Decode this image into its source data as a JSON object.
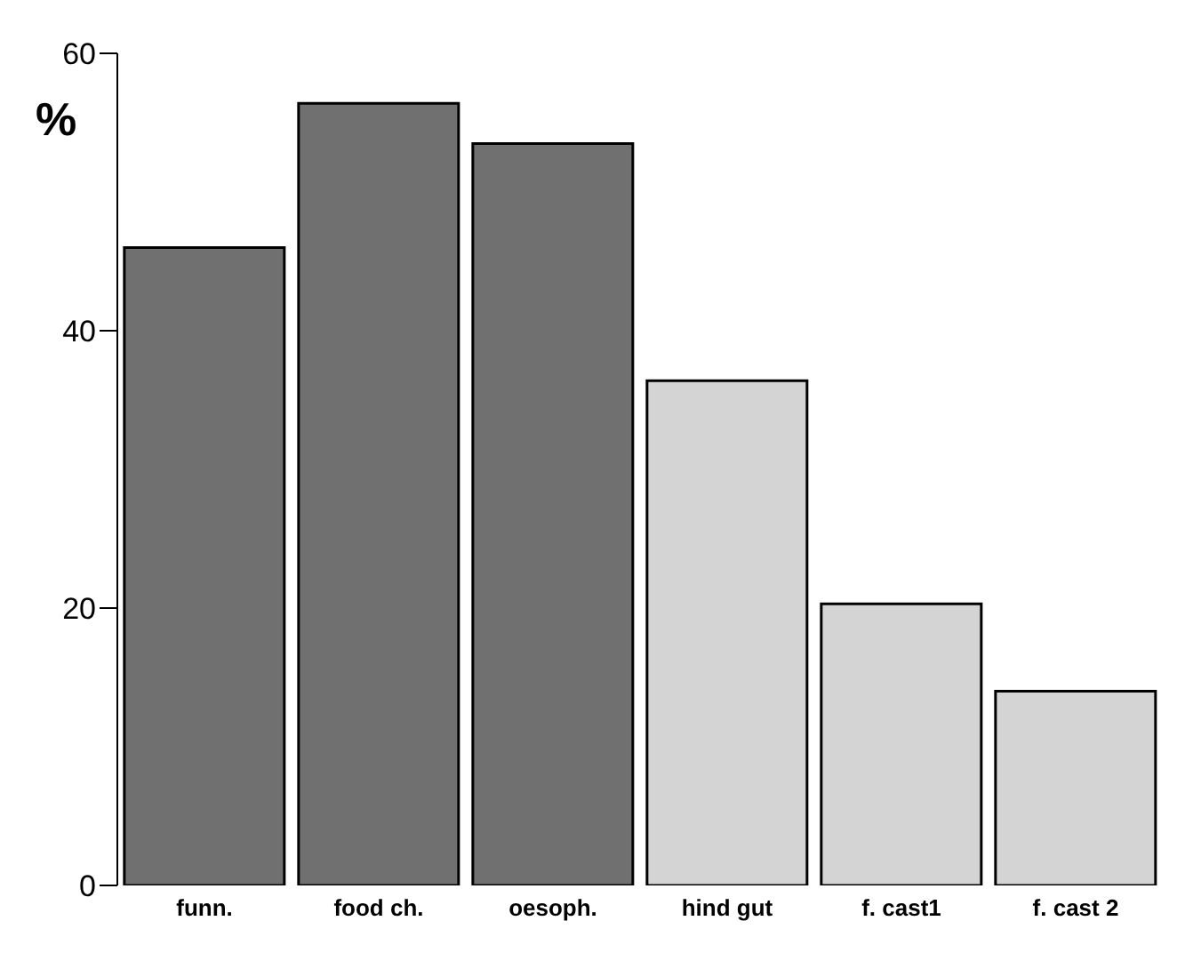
{
  "chart_data": {
    "type": "bar",
    "ylabel": "%",
    "categories": [
      "funn.",
      "food ch.",
      "oesoph.",
      "hind gut",
      "f. cast1",
      "f. cast 2"
    ],
    "values": [
      46,
      56.4,
      53.5,
      36.4,
      20.3,
      14
    ],
    "colors": [
      "#707070",
      "#707070",
      "#707070",
      "#d4d4d4",
      "#d4d4d4",
      "#d4d4d4"
    ],
    "ylim": [
      0,
      60
    ],
    "yticks": [
      0,
      20,
      40,
      60
    ],
    "grid": false,
    "legend": false
  }
}
